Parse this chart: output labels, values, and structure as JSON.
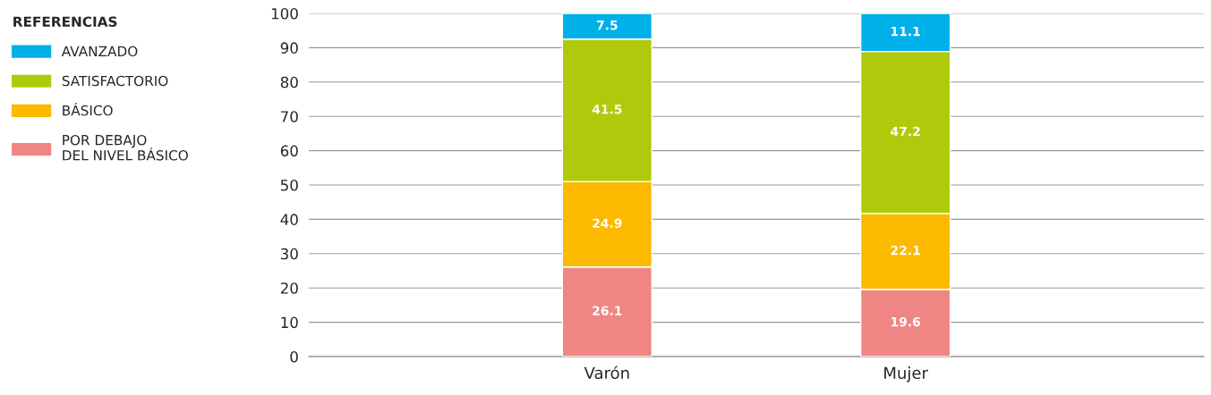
{
  "chart_data": {
    "type": "bar",
    "stacked": true,
    "categories": [
      "Varón",
      "Mujer"
    ],
    "series": [
      {
        "name": "POR DEBAJO\nDEL NIVEL BÁSICO",
        "color": "#f08683",
        "values": [
          26.1,
          19.6
        ]
      },
      {
        "name": "BÁSICO",
        "color": "#fbb900",
        "values": [
          24.9,
          22.1
        ]
      },
      {
        "name": "SATISFACTORIO",
        "color": "#afca0b",
        "values": [
          41.5,
          47.2
        ]
      },
      {
        "name": "AVANZADO",
        "color": "#00b0e8",
        "values": [
          7.5,
          11.1
        ]
      }
    ],
    "legend_title": "REFERENCIAS",
    "legend": "left",
    "ylim": [
      0,
      100
    ],
    "yticks": [
      0,
      10,
      20,
      30,
      40,
      50,
      60,
      70,
      80,
      90,
      100
    ],
    "grid": "y",
    "data_labels": true
  }
}
